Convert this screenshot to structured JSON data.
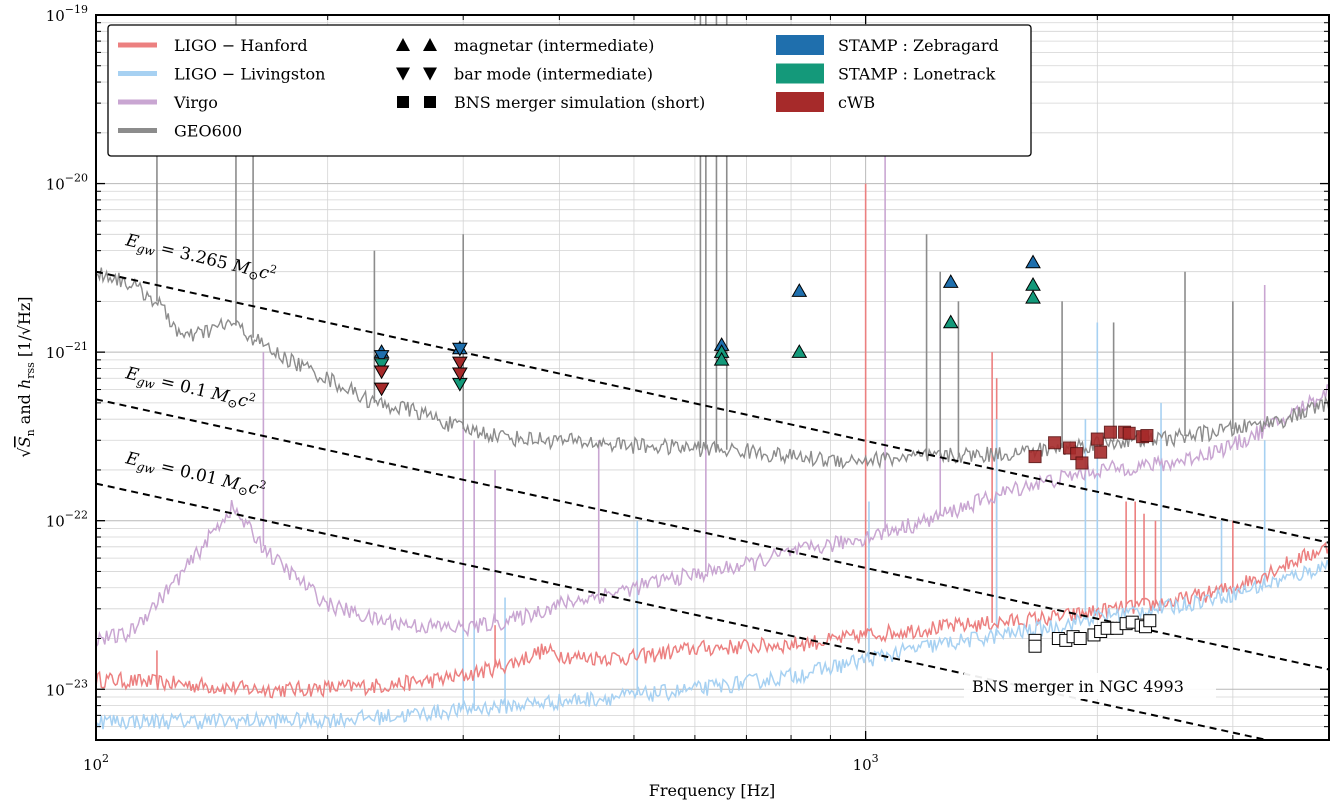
{
  "chart_data": {
    "type": "line",
    "xlabel": "Frequency [Hz]",
    "ylabel": "√S_n and h_rss [1/√Hz]",
    "ylabel_parts": {
      "sqrt": "√",
      "s": "S",
      "n": "n",
      "and": " and ",
      "h": "h",
      "rss": "rss",
      "units": "[1/√Hz]"
    },
    "x_scale": "log",
    "y_scale": "log",
    "xlim": [
      100,
      4000
    ],
    "ylim": [
      5e-24,
      1e-19
    ],
    "x_ticks": [
      {
        "value": 100,
        "base": "10",
        "exp": "2"
      },
      {
        "value": 1000,
        "base": "10",
        "exp": "3"
      }
    ],
    "y_ticks": [
      {
        "value": 1e-19,
        "base": "10",
        "exp": "−19"
      },
      {
        "value": 1e-20,
        "base": "10",
        "exp": "−20"
      },
      {
        "value": 1e-21,
        "base": "10",
        "exp": "−21"
      },
      {
        "value": 1e-22,
        "base": "10",
        "exp": "−22"
      },
      {
        "value": 1e-23,
        "base": "10",
        "exp": "−23"
      }
    ],
    "grid": true,
    "legend_placement": "top-left",
    "legend": {
      "col1": [
        {
          "label": "LIGO − Hanford",
          "color": "#ec8080"
        },
        {
          "label": "LIGO − Livingston",
          "color": "#a7d1f2"
        },
        {
          "label": "Virgo",
          "color": "#c9a6d2"
        },
        {
          "label": "GEO600",
          "color": "#8c8c8c"
        }
      ],
      "col2": [
        {
          "label": "magnetar (intermediate)",
          "marker": "triangle-up"
        },
        {
          "label": "bar mode (intermediate)",
          "marker": "triangle-down"
        },
        {
          "label": "BNS merger simulation (short)",
          "marker": "square"
        }
      ],
      "col3": [
        {
          "label": "STAMP : Zebragard",
          "color": "#1f6fad"
        },
        {
          "label": "STAMP : Lonetrack",
          "color": "#14997a"
        },
        {
          "label": "cWB",
          "color": "#a62a2a"
        }
      ]
    },
    "series": [
      {
        "name": "LIGO − Hanford",
        "color": "#ec8080",
        "x": [
          100,
          120,
          140,
          160,
          180,
          200,
          230,
          260,
          300,
          350,
          380,
          420,
          500,
          600,
          700,
          800,
          900,
          1000,
          1200,
          1500,
          1800,
          2000,
          2500,
          3000,
          3500,
          4000
        ],
        "y": [
          1.15e-23,
          1.1e-23,
          1.05e-23,
          1e-23,
          1e-23,
          1.02e-23,
          1.05e-23,
          1.1e-23,
          1.2e-23,
          1.45e-23,
          1.7e-23,
          1.55e-23,
          1.55e-23,
          1.75e-23,
          1.8e-23,
          1.85e-23,
          1.95e-23,
          2.1e-23,
          2.3e-23,
          2.5e-23,
          2.7e-23,
          2.9e-23,
          3.3e-23,
          4e-23,
          5.5e-23,
          7e-23
        ],
        "lines": [
          {
            "x": 120,
            "y": 1.7e-23
          },
          {
            "x": 300,
            "y": 3e-23
          },
          {
            "x": 330,
            "y": 2.4e-23
          },
          {
            "x": 1000,
            "y": 1e-20
          },
          {
            "x": 1460,
            "y": 1e-21
          },
          {
            "x": 1480,
            "y": 7e-22
          },
          {
            "x": 2180,
            "y": 1.3e-22
          },
          {
            "x": 2240,
            "y": 1.3e-22
          },
          {
            "x": 2300,
            "y": 1.1e-22
          },
          {
            "x": 2380,
            "y": 1e-22
          },
          {
            "x": 3000,
            "y": 1e-22
          }
        ]
      },
      {
        "name": "LIGO − Livingston",
        "color": "#a7d1f2",
        "x": [
          100,
          150,
          200,
          250,
          300,
          400,
          500,
          600,
          700,
          800,
          900,
          1000,
          1200,
          1500,
          1800,
          2000,
          2500,
          3000,
          3500,
          4000
        ],
        "y": [
          6.5e-24,
          6.5e-24,
          6.6e-24,
          7e-24,
          7.6e-24,
          8.5e-24,
          9.2e-24,
          1e-23,
          1.1e-23,
          1.2e-23,
          1.35e-23,
          1.5e-23,
          1.8e-23,
          2.1e-23,
          2.4e-23,
          2.7e-23,
          3.1e-23,
          3.7e-23,
          4.5e-23,
          5.5e-23
        ],
        "lines": [
          {
            "x": 300,
            "y": 2.5e-23
          },
          {
            "x": 310,
            "y": 3e-23
          },
          {
            "x": 340,
            "y": 3.5e-23
          },
          {
            "x": 505,
            "y": 1e-22
          },
          {
            "x": 1010,
            "y": 1.3e-22
          },
          {
            "x": 1480,
            "y": 4e-22
          },
          {
            "x": 1930,
            "y": 4e-22
          },
          {
            "x": 2000,
            "y": 1.5e-21
          },
          {
            "x": 2420,
            "y": 5e-22
          },
          {
            "x": 2900,
            "y": 1e-22
          },
          {
            "x": 3300,
            "y": 3e-22
          }
        ]
      },
      {
        "name": "Virgo",
        "color": "#c9a6d2",
        "x": [
          100,
          110,
          130,
          150,
          170,
          200,
          230,
          260,
          300,
          350,
          400,
          450,
          500,
          550,
          600,
          700,
          800,
          900,
          1000,
          1200,
          1400,
          1600,
          1800,
          2000,
          2500,
          3000,
          3500,
          4000
        ],
        "y": [
          2e-23,
          2.1e-23,
          5e-23,
          1.2e-22,
          6e-23,
          3.2e-23,
          2.6e-23,
          2.4e-23,
          2.3e-23,
          2.6e-23,
          3.2e-23,
          3.6e-23,
          4e-23,
          4.5e-23,
          4.8e-23,
          5.5e-23,
          6.5e-23,
          7.2e-23,
          8e-23,
          1e-22,
          1.3e-22,
          1.6e-22,
          1.8e-22,
          2e-22,
          2.2e-22,
          2.8e-22,
          4e-22,
          6e-22
        ],
        "lines": [
          {
            "x": 165,
            "y": 1e-21
          },
          {
            "x": 300,
            "y": 4e-22
          },
          {
            "x": 310,
            "y": 3e-22
          },
          {
            "x": 330,
            "y": 2e-22
          },
          {
            "x": 450,
            "y": 3e-22
          },
          {
            "x": 620,
            "y": 6e-22
          },
          {
            "x": 1060,
            "y": 7e-20
          },
          {
            "x": 1250,
            "y": 1.5e-21
          },
          {
            "x": 3300,
            "y": 2.5e-21
          }
        ]
      },
      {
        "name": "GEO600",
        "color": "#8c8c8c",
        "x": [
          100,
          110,
          120,
          130,
          150,
          170,
          200,
          230,
          260,
          300,
          350,
          400,
          500,
          600,
          700,
          800,
          900,
          1000,
          1200,
          1500,
          1800,
          2000,
          2500,
          3000,
          3500,
          4000
        ],
        "y": [
          3e-21,
          2.6e-21,
          2e-21,
          1.2e-21,
          1.5e-21,
          1e-21,
          7e-22,
          5e-22,
          4.5e-22,
          3.5e-22,
          3.1e-22,
          3e-22,
          2.8e-22,
          2.7e-22,
          2.6e-22,
          2.4e-22,
          2.3e-22,
          2.3e-22,
          2.4e-22,
          2.5e-22,
          2.7e-22,
          2.9e-22,
          3.1e-22,
          3.5e-22,
          4e-22,
          5e-22
        ],
        "lines": [
          {
            "x": 120,
            "y": 2e-20
          },
          {
            "x": 152,
            "y": 1e-19
          },
          {
            "x": 160,
            "y": 5e-20
          },
          {
            "x": 230,
            "y": 4e-21
          },
          {
            "x": 300,
            "y": 5e-21
          },
          {
            "x": 610,
            "y": 1e-19
          },
          {
            "x": 620,
            "y": 1e-19
          },
          {
            "x": 640,
            "y": 1e-19
          },
          {
            "x": 660,
            "y": 1e-19
          },
          {
            "x": 1200,
            "y": 5e-21
          },
          {
            "x": 1250,
            "y": 3e-21
          },
          {
            "x": 1320,
            "y": 2e-21
          },
          {
            "x": 1800,
            "y": 2e-21
          },
          {
            "x": 2100,
            "y": 1.5e-21
          },
          {
            "x": 2600,
            "y": 3e-21
          },
          {
            "x": 3000,
            "y": 2e-21
          }
        ]
      }
    ],
    "reference_lines": [
      {
        "label": "E_gw = 3.265 M_⊙c²",
        "label_parts": {
          "e": "E",
          "gw": "gw",
          "eq": " = 3.265 ",
          "m": "M",
          "sun": "⊙",
          "c": "c",
          "two": "2"
        },
        "x": [
          100,
          4000
        ],
        "y": [
          3e-21,
          7.4e-23
        ]
      },
      {
        "label": "E_gw = 0.1 M_⊙c²",
        "label_parts": {
          "e": "E",
          "gw": "gw",
          "eq": " = 0.1 ",
          "m": "M",
          "sun": "⊙",
          "c": "c",
          "two": "2"
        },
        "x": [
          100,
          4000
        ],
        "y": [
          5.25e-22,
          1.31e-23
        ]
      },
      {
        "label": "E_gw = 0.01 M_⊙c²",
        "label_parts": {
          "e": "E",
          "gw": "gw",
          "eq": " = 0.01 ",
          "m": "M",
          "sun": "⊙",
          "c": "c",
          "two": "2"
        },
        "x": [
          100,
          4000
        ],
        "y": [
          1.66e-22,
          4.15e-24
        ]
      }
    ],
    "annotations": [
      {
        "text": "BNS merger in NGC 4993",
        "x": 1400,
        "y": 1e-23
      }
    ],
    "markers": {
      "magnetar_zebragard": {
        "marker": "triangle-up",
        "color": "#1f6fad",
        "x": [
          235,
          297,
          650,
          820,
          1290,
          1650
        ],
        "y": [
          1e-21,
          1.05e-21,
          1.1e-21,
          2.3e-21,
          2.6e-21,
          3.4e-21
        ]
      },
      "magnetar_lonetrack": {
        "marker": "triangle-up",
        "color": "#14997a",
        "x": [
          650,
          650,
          820,
          1290,
          1650,
          1650
        ],
        "y": [
          1e-21,
          9e-22,
          1e-21,
          1.5e-21,
          2.5e-21,
          2.1e-21
        ]
      },
      "barmode_zebragard": {
        "marker": "triangle-down",
        "color": "#1f6fad",
        "x": [
          235,
          297
        ],
        "y": [
          9.5e-22,
          1.05e-21
        ]
      },
      "barmode_lonetrack": {
        "marker": "triangle-down",
        "color": "#14997a",
        "x": [
          235,
          297
        ],
        "y": [
          8.5e-22,
          6.5e-22
        ]
      },
      "barmode_cwb": {
        "marker": "triangle-down",
        "color": "#a62a2a",
        "x": [
          235,
          235,
          297,
          297
        ],
        "y": [
          7.7e-22,
          6.1e-22,
          8.7e-22,
          7.5e-22
        ]
      },
      "bns_cwb": {
        "marker": "square",
        "color": "#a62a2a",
        "x": [
          1660,
          1760,
          1840,
          1880,
          1910,
          2000,
          2020,
          2080,
          2170,
          2200,
          2290,
          2320
        ],
        "y": [
          2.4e-22,
          2.9e-22,
          2.7e-22,
          2.5e-22,
          2.2e-22,
          3.05e-22,
          2.55e-22,
          3.35e-22,
          3.35e-22,
          3.3e-22,
          3.15e-22,
          3.2e-22
        ]
      },
      "bns_noise_floor": {
        "marker": "square-open",
        "color": "#000000",
        "x": [
          1660,
          1660,
          1780,
          1820,
          1860,
          1900,
          1980,
          2020,
          2060,
          2120,
          2180,
          2220,
          2280,
          2310,
          2340
        ],
        "y": [
          1.95e-23,
          1.8e-23,
          2e-23,
          1.95e-23,
          2.05e-23,
          2e-23,
          2.1e-23,
          2.2e-23,
          2.3e-23,
          2.3e-23,
          2.45e-23,
          2.5e-23,
          2.4e-23,
          2.35e-23,
          2.55e-23
        ]
      }
    }
  }
}
